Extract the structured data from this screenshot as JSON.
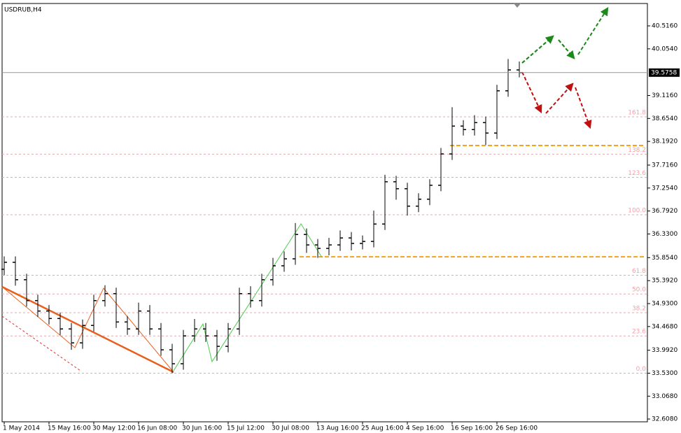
{
  "chart_data": {
    "type": "ohlc",
    "title": "USDRUB,H4",
    "categories": [
      "1 May 2014",
      null,
      null,
      null,
      "15 May 16:00",
      null,
      null,
      null,
      "30 May 12:00",
      null,
      null,
      null,
      "16 Jun 08:00",
      null,
      null,
      null,
      "30 Jun 16:00",
      null,
      null,
      null,
      "15 Jul 12:00",
      null,
      null,
      null,
      "30 Jul 08:00",
      null,
      null,
      null,
      "13 Aug 16:00",
      null,
      null,
      null,
      "25 Aug 16:00",
      null,
      null,
      null,
      "4 Sep 16:00",
      null,
      null,
      null,
      "16 Sep 16:00",
      null,
      null,
      null,
      "26 Sep 16:00",
      null,
      null
    ],
    "open": [
      35.62,
      35.76,
      35.41,
      34.99,
      34.78,
      34.63,
      34.42,
      34.14,
      34.49,
      34.99,
      35.13,
      34.56,
      34.42,
      34.78,
      34.42,
      34.0,
      33.72,
      34.28,
      34.42,
      34.28,
      34.07,
      34.42,
      35.13,
      34.99,
      35.41,
      35.69,
      35.83,
      36.32,
      36.11,
      36.04,
      36.11,
      36.25,
      36.14,
      36.18,
      36.53,
      37.38,
      37.24,
      36.89,
      37.03,
      37.31,
      37.94,
      38.5,
      38.43,
      38.57,
      38.36,
      39.21,
      39.63
    ],
    "high": [
      35.88,
      35.88,
      35.53,
      35.11,
      34.9,
      34.75,
      34.54,
      34.61,
      35.11,
      35.3,
      35.25,
      34.68,
      34.95,
      34.9,
      34.54,
      34.12,
      34.4,
      34.62,
      34.54,
      34.4,
      34.54,
      35.25,
      35.28,
      35.53,
      35.85,
      35.98,
      36.55,
      36.44,
      36.23,
      36.25,
      36.4,
      36.37,
      36.3,
      36.8,
      37.52,
      37.5,
      37.36,
      37.15,
      37.43,
      38.06,
      38.88,
      38.62,
      38.72,
      38.69,
      39.33,
      39.85,
      39.8
    ],
    "low": [
      35.5,
      35.29,
      34.87,
      34.66,
      34.51,
      34.3,
      34.0,
      34.02,
      34.37,
      34.87,
      34.44,
      34.3,
      34.3,
      34.3,
      33.88,
      33.53,
      33.6,
      34.16,
      34.16,
      33.78,
      33.95,
      34.3,
      34.85,
      34.87,
      35.29,
      35.57,
      35.71,
      35.95,
      35.85,
      35.9,
      35.99,
      36.0,
      36.02,
      36.06,
      36.41,
      37.02,
      36.7,
      36.77,
      36.91,
      37.19,
      37.82,
      38.31,
      38.31,
      38.12,
      38.24,
      39.09,
      39.48
    ],
    "close": [
      35.76,
      35.41,
      34.99,
      34.78,
      34.63,
      34.42,
      34.14,
      34.49,
      34.99,
      35.13,
      34.56,
      34.42,
      34.78,
      34.42,
      34.0,
      33.72,
      34.28,
      34.42,
      34.28,
      34.07,
      34.42,
      35.13,
      34.99,
      35.41,
      35.69,
      35.83,
      36.32,
      36.11,
      36.04,
      36.11,
      36.25,
      36.14,
      36.18,
      36.53,
      37.38,
      37.24,
      36.89,
      37.03,
      37.31,
      37.94,
      38.5,
      38.43,
      38.57,
      38.36,
      39.21,
      39.63,
      39.5758
    ],
    "color": "#000000",
    "ylim": [
      32.552,
      40.966
    ],
    "yticks": [
      {
        "value": 32.608,
        "label": "32.6080"
      },
      {
        "value": 33.068,
        "label": "33.0680"
      },
      {
        "value": 33.53,
        "label": "33.5300"
      },
      {
        "value": 33.992,
        "label": "33.9920"
      },
      {
        "value": 34.468,
        "label": "34.4680"
      },
      {
        "value": 34.93,
        "label": "34.9300"
      },
      {
        "value": 35.392,
        "label": "35.3920"
      },
      {
        "value": 35.854,
        "label": "35.8540"
      },
      {
        "value": 36.33,
        "label": "36.3300"
      },
      {
        "value": 36.792,
        "label": "36.7920"
      },
      {
        "value": 37.254,
        "label": "37.2540"
      },
      {
        "value": 37.716,
        "label": "37.7160"
      },
      {
        "value": 38.192,
        "label": "38.1920"
      },
      {
        "value": 38.654,
        "label": "38.6540"
      },
      {
        "value": 39.116,
        "label": "39.1160"
      },
      {
        "value": 40.054,
        "label": "40.0540"
      },
      {
        "value": 40.516,
        "label": "40.5160"
      }
    ],
    "current_price": {
      "value": 39.5758,
      "label": "39.5758"
    },
    "fibonacci": [
      {
        "label": "0.0",
        "price": 33.53
      },
      {
        "label": "23.6",
        "price": 34.28
      },
      {
        "label": "38.2",
        "price": 34.747
      },
      {
        "label": "50.0",
        "price": 35.124
      },
      {
        "label": "61.8",
        "price": 35.5
      },
      {
        "label": "100.0",
        "price": 36.717
      },
      {
        "label": "123.6",
        "price": 37.47
      },
      {
        "label": "138.2",
        "price": 37.935
      },
      {
        "label": "161.8",
        "price": 38.687
      }
    ],
    "levels": [
      38.11,
      35.87
    ],
    "level_color": "#f5a21d",
    "fib_color": "#f4a0a8"
  }
}
